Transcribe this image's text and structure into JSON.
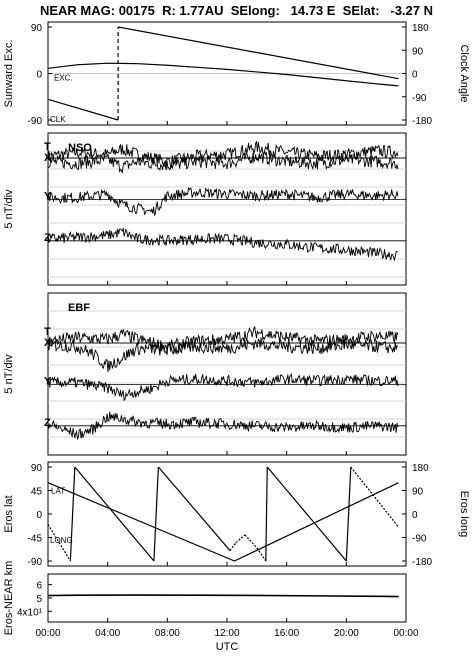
{
  "title": "NEAR MAG: 00175  R: 1.77AU  SElong:   14.73 E  SElat:   -3.27 N",
  "colors": {
    "line": "#000000",
    "grid": "#c8c8c8",
    "background": "#ffffff"
  },
  "chart_data": [
    {
      "type": "line",
      "panel": "orientation",
      "left_axis": {
        "label": "Sunward Exc.",
        "ticks": [
          "90",
          "0",
          "-90"
        ],
        "ylim": [
          -90,
          90
        ]
      },
      "right_axis": {
        "label": "Clock Angle",
        "ticks": [
          "180",
          "90",
          "0",
          "-90",
          "-180"
        ],
        "ylim": [
          -180,
          180
        ]
      },
      "annotations": [
        "EXC.",
        "CLK"
      ],
      "series": [
        {
          "name": "EXC.",
          "x_hours": [
            0,
            2,
            4,
            6,
            8,
            10,
            12,
            14,
            16,
            18,
            20,
            22,
            23.5
          ],
          "y": [
            10,
            17,
            20,
            19,
            16,
            12,
            8,
            3,
            -2,
            -8,
            -14,
            -20,
            -24
          ]
        },
        {
          "name": "CLK",
          "x_hours": [
            0,
            4.7,
            4.7,
            23.5
          ],
          "y": [
            -100,
            -180,
            180,
            -20
          ]
        }
      ]
    },
    {
      "type": "line",
      "panel": "NSO",
      "label": "NSO",
      "ylabel": "5 nT/div",
      "series": [
        {
          "name": "T",
          "offset_div": 0,
          "noise": 0.35,
          "x_hours": [
            0,
            2,
            4,
            5,
            6,
            8,
            10,
            12,
            14,
            16,
            18,
            20,
            22,
            23.5
          ],
          "y": [
            0.1,
            0.3,
            0.2,
            0.5,
            0.2,
            -0.2,
            0.1,
            0.2,
            0.6,
            0.3,
            0.1,
            0.2,
            0.4,
            0.3
          ]
        },
        {
          "name": "X",
          "offset_div": 0,
          "noise": 0.35,
          "x_hours": [
            0,
            2,
            4,
            5,
            6,
            8,
            10,
            12,
            14,
            16,
            18,
            20,
            22,
            23.5
          ],
          "y": [
            -0.2,
            -0.3,
            -0.1,
            -0.5,
            -0.2,
            -0.4,
            -0.2,
            -0.3,
            0.1,
            -0.2,
            -0.3,
            -0.1,
            -0.2,
            -0.3
          ]
        },
        {
          "name": "Y",
          "offset_div": -2.3,
          "noise": 0.3,
          "x_hours": [
            0,
            2,
            4,
            5,
            6,
            7,
            8,
            10,
            12,
            14,
            16,
            18,
            20,
            22,
            23.5
          ],
          "y": [
            0.1,
            0.1,
            0.3,
            -0.3,
            -0.5,
            -0.7,
            0.2,
            0.4,
            0.3,
            0.2,
            0.3,
            0.1,
            0.3,
            0.2,
            0.3
          ]
        },
        {
          "name": "Z",
          "offset_div": -4.6,
          "noise": 0.3,
          "x_hours": [
            0,
            2,
            4,
            5,
            6,
            8,
            10,
            12,
            14,
            16,
            18,
            20,
            22,
            23.5
          ],
          "y": [
            0.1,
            0.2,
            0.3,
            0.5,
            0.1,
            0.0,
            0.1,
            0.1,
            -0.1,
            -0.2,
            -0.4,
            -0.5,
            -0.7,
            -0.8
          ]
        }
      ]
    },
    {
      "type": "line",
      "panel": "EBF",
      "label": "EBF",
      "ylabel": "5 nT/div",
      "series": [
        {
          "name": "T",
          "offset_div": 0,
          "noise": 0.35,
          "x_hours": [
            0,
            2,
            4,
            5,
            6,
            8,
            10,
            12,
            14,
            16,
            18,
            20,
            22,
            23.5
          ],
          "y": [
            0.1,
            0.3,
            0.2,
            0.5,
            0.2,
            -0.2,
            0.1,
            0.2,
            0.6,
            0.3,
            0.1,
            0.2,
            0.4,
            0.3
          ]
        },
        {
          "name": "X",
          "offset_div": 0,
          "noise": 0.35,
          "x_hours": [
            0,
            2,
            3,
            4,
            5,
            6,
            8,
            10,
            12,
            14,
            16,
            18,
            20,
            22,
            23.5
          ],
          "y": [
            -0.1,
            -0.2,
            -0.6,
            -1.3,
            -0.8,
            -0.3,
            -0.4,
            -0.2,
            -0.3,
            0.0,
            -0.2,
            -0.3,
            -0.1,
            -0.2,
            -0.3
          ]
        },
        {
          "name": "Y",
          "offset_div": -2.3,
          "noise": 0.3,
          "x_hours": [
            0,
            2,
            4,
            5,
            6,
            7,
            8,
            10,
            12,
            14,
            16,
            18,
            20,
            22,
            23.5
          ],
          "y": [
            0.1,
            0.1,
            -0.2,
            -0.6,
            -0.4,
            -0.2,
            0.2,
            0.3,
            0.2,
            0.1,
            0.3,
            0.2,
            0.3,
            0.2,
            0.2
          ]
        },
        {
          "name": "Z",
          "offset_div": -4.6,
          "noise": 0.3,
          "x_hours": [
            0,
            2,
            3,
            4,
            5,
            6,
            8,
            10,
            12,
            14,
            16,
            18,
            20,
            22,
            23.5
          ],
          "y": [
            0.1,
            -0.5,
            -0.2,
            0.5,
            0.4,
            0.2,
            0.1,
            0.2,
            0.1,
            0.0,
            -0.1,
            0.0,
            -0.1,
            0.0,
            -0.1
          ]
        }
      ]
    },
    {
      "type": "line",
      "panel": "eros-position",
      "left_axis": {
        "label": "Eros lat",
        "ticks": [
          "90",
          "45",
          "0",
          "-45",
          "-90"
        ],
        "ylim": [
          -90,
          90
        ]
      },
      "right_axis": {
        "label": "Eros long",
        "ticks": [
          "180",
          "90",
          "0",
          "-90",
          "-180"
        ],
        "ylim": [
          -180,
          180
        ]
      },
      "annotations": [
        "LAT",
        "LONG"
      ],
      "series": [
        {
          "name": "LAT",
          "x_hours": [
            0,
            12.5,
            23.5
          ],
          "y": [
            60,
            -90,
            60
          ]
        },
        {
          "name": "LONG",
          "x_hours": [
            0,
            1.5,
            1.8,
            7.1,
            7.4,
            12.2,
            12.6,
            13.2,
            14.0,
            14.6,
            14.7,
            20.0,
            20.3,
            23.5
          ],
          "y": [
            -40,
            -180,
            180,
            -180,
            180,
            -140,
            -110,
            -80,
            -130,
            -180,
            180,
            -180,
            180,
            -50
          ]
        }
      ]
    },
    {
      "type": "line",
      "panel": "range",
      "ylabel": "Eros-NEAR km",
      "ticks": [
        "6",
        "5",
        "4x10¹"
      ],
      "ylim": [
        35,
        65
      ],
      "series": [
        {
          "name": "range",
          "x_hours": [
            0,
            2,
            6,
            10,
            14,
            18,
            22,
            23.5
          ],
          "y": [
            51.8,
            52.1,
            52.2,
            52.1,
            51.9,
            51.6,
            51.3,
            51.1
          ]
        }
      ]
    }
  ],
  "x_axis": {
    "label": "UTC",
    "ticks": [
      "00:00",
      "04:00",
      "08:00",
      "12:00",
      "16:00",
      "20:00",
      "00:00"
    ],
    "range_hours": [
      0,
      24
    ]
  }
}
